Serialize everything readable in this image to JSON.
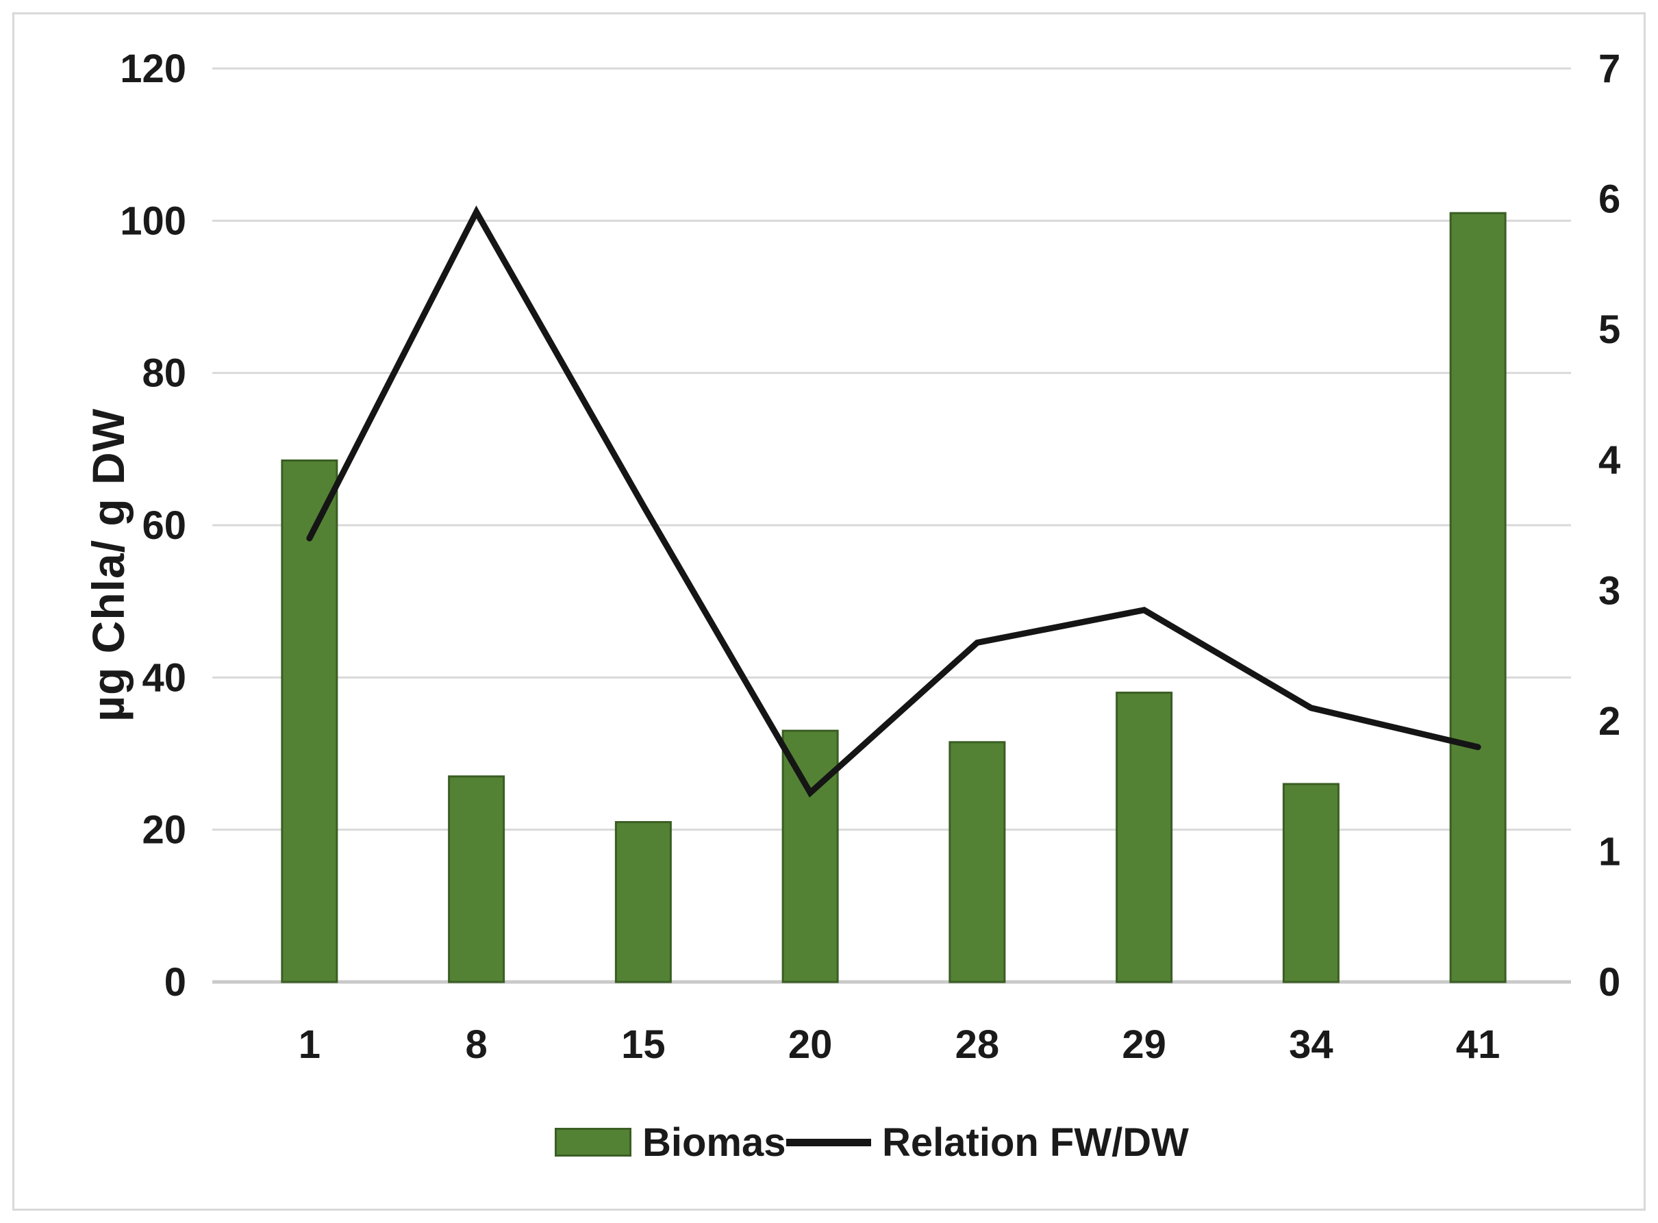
{
  "chart_data": {
    "type": "combo-bar-line",
    "categories": [
      "1",
      "8",
      "15",
      "20",
      "28",
      "29",
      "34",
      "41"
    ],
    "series": [
      {
        "name": "Biomas",
        "type": "bar",
        "axis": "left",
        "values": [
          68.5,
          27,
          21,
          33,
          31.5,
          38,
          26,
          101
        ],
        "color": "#548235",
        "border_color": "#3a5e23"
      },
      {
        "name": "Relation FW/DW",
        "type": "line",
        "axis": "right",
        "values": [
          3.4,
          5.9,
          3.65,
          1.45,
          2.6,
          2.85,
          2.1,
          1.8
        ],
        "color": "#151515"
      }
    ],
    "left_axis": {
      "label": "µg Chla/ g DW",
      "min": 0,
      "max": 120,
      "step": 20,
      "ticks": [
        "0",
        "20",
        "40",
        "60",
        "80",
        "100",
        "120"
      ]
    },
    "right_axis": {
      "min": 0,
      "max": 7,
      "step": 1,
      "ticks": [
        "0",
        "1",
        "2",
        "3",
        "4",
        "5",
        "6",
        "7"
      ]
    },
    "grid": true,
    "legend_position": "bottom",
    "colors": {
      "gridline": "#d9d9d9",
      "axis_line": "#c9c9c9",
      "text": "#1a1a1a",
      "background": "#ffffff",
      "figure_border": "#d9d9d9"
    }
  }
}
